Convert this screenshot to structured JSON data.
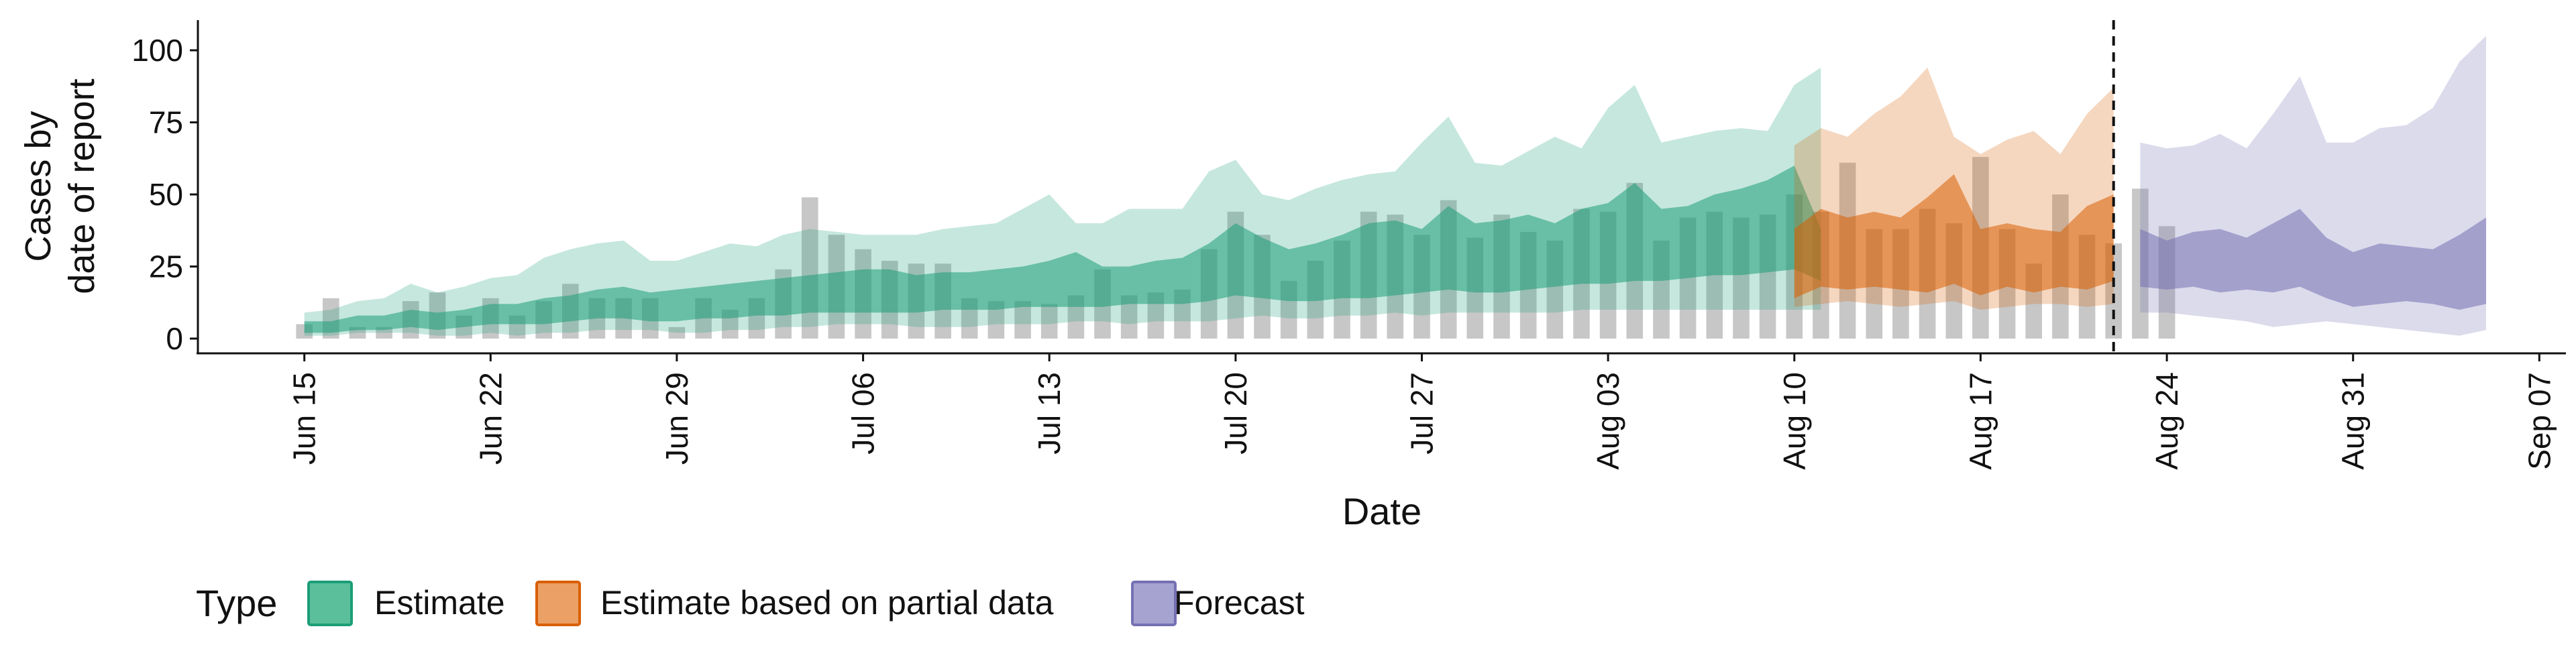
{
  "chart_data": {
    "type": "area",
    "xlabel": "Date",
    "ylabel_lines": [
      "Cases by",
      "date of report"
    ],
    "ylim": [
      0,
      110
    ],
    "yticks": [
      0,
      25,
      50,
      75,
      100
    ],
    "xlim": [
      "2020-06-11",
      "2020-09-08"
    ],
    "xticks": [
      {
        "date": "2020-06-15",
        "label": "Jun 15"
      },
      {
        "date": "2020-06-22",
        "label": "Jun 22"
      },
      {
        "date": "2020-06-29",
        "label": "Jun 29"
      },
      {
        "date": "2020-07-06",
        "label": "Jul 06"
      },
      {
        "date": "2020-07-13",
        "label": "Jul 13"
      },
      {
        "date": "2020-07-20",
        "label": "Jul 20"
      },
      {
        "date": "2020-07-27",
        "label": "Jul 27"
      },
      {
        "date": "2020-08-03",
        "label": "Aug 03"
      },
      {
        "date": "2020-08-10",
        "label": "Aug 10"
      },
      {
        "date": "2020-08-17",
        "label": "Aug 17"
      },
      {
        "date": "2020-08-24",
        "label": "Aug 24"
      },
      {
        "date": "2020-08-31",
        "label": "Aug 31"
      },
      {
        "date": "2020-09-07",
        "label": "Sep 07"
      }
    ],
    "vline": {
      "date": "2020-08-22",
      "style": "dashed"
    },
    "legend": {
      "title": "Type",
      "position": "bottom",
      "entries": [
        {
          "label": "Estimate",
          "fill": "#5bbf9c",
          "stroke": "#1b9e77"
        },
        {
          "label": "Estimate based on partial data",
          "fill": "#eba065",
          "stroke": "#d95f02"
        },
        {
          "label": "Forecast",
          "fill": "#a6a3d1",
          "stroke": "#7570b3"
        }
      ]
    },
    "colors": {
      "bars": "#bdbdbd",
      "estimate": "#1b9e77",
      "partial": "#d95f02",
      "forecast": "#7570b3",
      "vline": "#111111"
    },
    "bars": {
      "start_date": "2020-06-15",
      "values": [
        5,
        14,
        4,
        4,
        13,
        16,
        8,
        14,
        8,
        13,
        19,
        14,
        14,
        14,
        4,
        14,
        10,
        14,
        24,
        49,
        36,
        31,
        27,
        26,
        26,
        14,
        13,
        13,
        12,
        15,
        24,
        15,
        16,
        17,
        31,
        44,
        36,
        20,
        27,
        34,
        44,
        43,
        36,
        48,
        35,
        43,
        37,
        34,
        45,
        44,
        54,
        34,
        42,
        44,
        42,
        43,
        50,
        44,
        61,
        38,
        38,
        45,
        40,
        63,
        38,
        26,
        50,
        36,
        33,
        52,
        39
      ]
    },
    "series": [
      {
        "name": "Estimate",
        "start_date": "2020-06-15",
        "outer_lower": [
          1,
          1,
          2,
          2,
          2,
          1,
          1,
          2,
          1,
          2,
          2,
          3,
          3,
          3,
          2,
          2,
          3,
          3,
          4,
          4,
          5,
          5,
          5,
          4,
          4,
          4,
          5,
          5,
          5,
          6,
          6,
          5,
          6,
          6,
          6,
          7,
          8,
          7,
          7,
          8,
          8,
          9,
          8,
          9,
          9,
          9,
          9,
          9,
          10,
          10,
          10,
          10,
          10,
          10,
          10,
          10,
          10,
          10
        ],
        "inner_lower": [
          2,
          2,
          3,
          3,
          4,
          3,
          4,
          5,
          5,
          5,
          6,
          7,
          7,
          6,
          6,
          7,
          7,
          8,
          8,
          9,
          9,
          9,
          9,
          9,
          10,
          10,
          10,
          11,
          11,
          11,
          11,
          12,
          12,
          12,
          13,
          15,
          14,
          13,
          13,
          14,
          14,
          15,
          16,
          17,
          16,
          16,
          17,
          18,
          19,
          19,
          20,
          20,
          21,
          22,
          22,
          23,
          24,
          20
        ],
        "inner_upper": [
          6,
          6,
          8,
          8,
          10,
          9,
          10,
          12,
          12,
          14,
          15,
          17,
          18,
          16,
          17,
          18,
          19,
          20,
          21,
          22,
          23,
          24,
          24,
          22,
          23,
          23,
          24,
          25,
          27,
          30,
          25,
          25,
          27,
          28,
          33,
          40,
          35,
          31,
          33,
          36,
          40,
          41,
          38,
          46,
          40,
          41,
          43,
          40,
          45,
          47,
          54,
          45,
          46,
          50,
          52,
          55,
          60,
          38
        ],
        "outer_upper": [
          9,
          10,
          13,
          14,
          19,
          16,
          18,
          21,
          22,
          28,
          31,
          33,
          34,
          27,
          27,
          30,
          33,
          32,
          36,
          38,
          37,
          36,
          36,
          36,
          38,
          39,
          40,
          45,
          50,
          40,
          40,
          45,
          45,
          45,
          58,
          62,
          50,
          48,
          52,
          55,
          57,
          58,
          68,
          77,
          61,
          60,
          65,
          70,
          66,
          80,
          88,
          68,
          70,
          72,
          73,
          72,
          88,
          94
        ]
      },
      {
        "name": "Estimate based on partial data",
        "start_date": "2020-08-10",
        "outer_lower": [
          11,
          12,
          13,
          12,
          11,
          12,
          13,
          10,
          11,
          12,
          12,
          11,
          12
        ],
        "inner_lower": [
          14,
          18,
          17,
          18,
          17,
          16,
          19,
          15,
          18,
          16,
          18,
          17,
          20
        ],
        "inner_upper": [
          38,
          45,
          42,
          44,
          42,
          49,
          57,
          38,
          40,
          38,
          37,
          46,
          50
        ],
        "outer_upper": [
          67,
          73,
          70,
          78,
          84,
          94,
          70,
          64,
          69,
          72,
          64,
          78,
          87
        ]
      },
      {
        "name": "Forecast",
        "start_date": "2020-08-23",
        "outer_lower": [
          9,
          9,
          8,
          7,
          6,
          4,
          5,
          6,
          5,
          4,
          3,
          2,
          1,
          3
        ],
        "inner_lower": [
          18,
          17,
          18,
          16,
          17,
          16,
          18,
          14,
          11,
          12,
          13,
          12,
          10,
          12
        ],
        "inner_upper": [
          38,
          34,
          37,
          38,
          35,
          40,
          45,
          35,
          30,
          33,
          32,
          31,
          36,
          42
        ],
        "outer_upper": [
          68,
          66,
          67,
          71,
          66,
          78,
          91,
          68,
          68,
          73,
          74,
          80,
          96,
          105
        ]
      }
    ]
  }
}
